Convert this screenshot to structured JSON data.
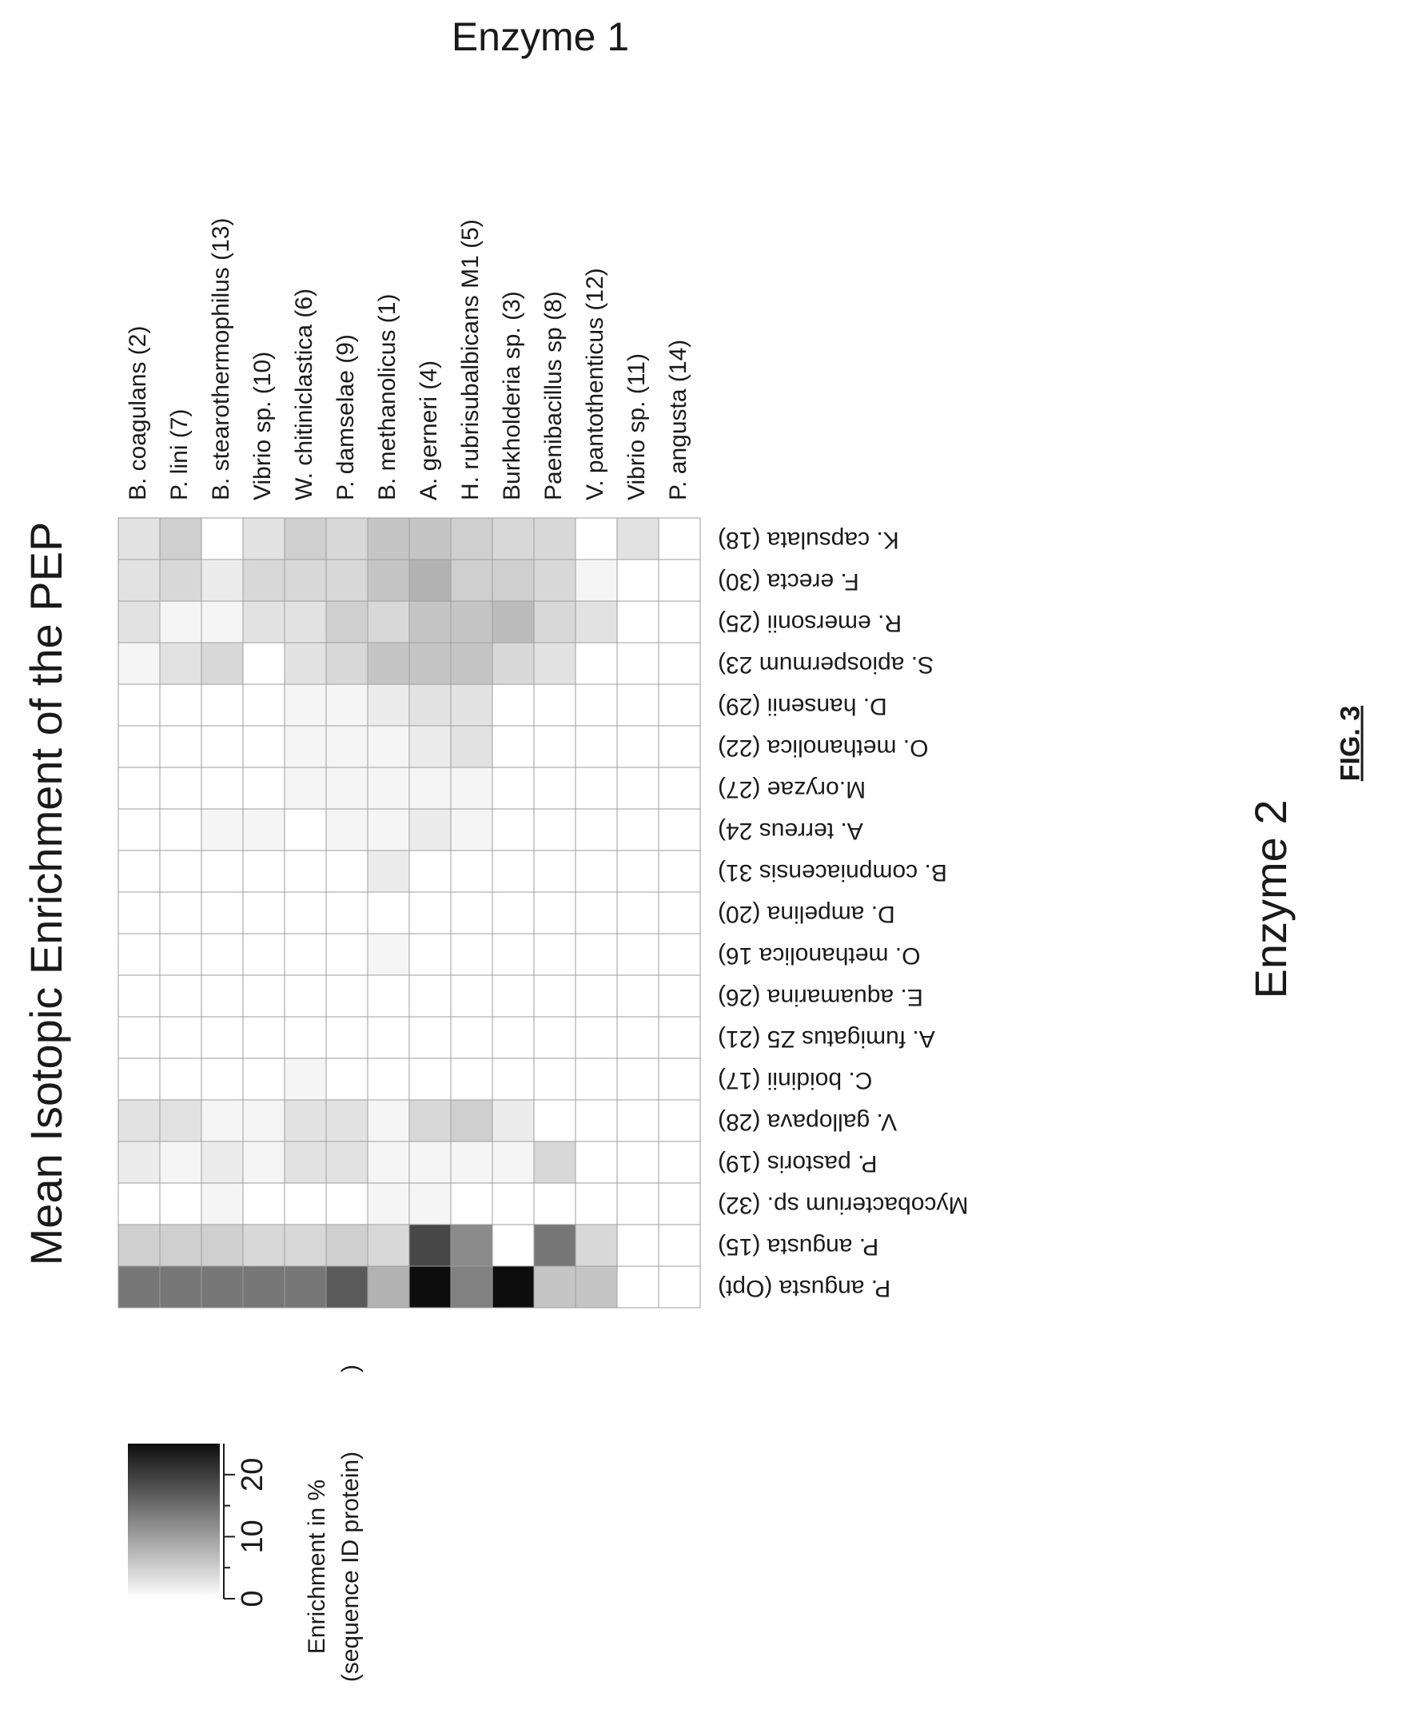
{
  "figure_label": "FIG. 3",
  "chart_data": {
    "type": "heatmap",
    "title": "Mean Isotopic Enrichment of the PEP",
    "enzyme1_label": "Enzyme 1",
    "enzyme2_label": "Enzyme 2",
    "enzyme1": [
      "B. coagulans (2)",
      "P. lini (7)",
      "B. stearothermophilus (13)",
      "Vibrio sp. (10)",
      "W. chitiniclastica (6)",
      "P. damselae (9)",
      "B. methanolicus (1)",
      "A. gerneri (4)",
      "H. rubrisubalbicans M1 (5)",
      "Burkholderia sp. (3)",
      "Paenibacillus sp (8)",
      "V. pantothenticus (12)",
      "Vibrio sp. (11)",
      "P. angusta (14)"
    ],
    "enzyme2": [
      "K. capsulata (18)",
      "F. erecta (30)",
      "R. emersonii (25)",
      "S. apiospermum 23)",
      "D. hansenii (29)",
      "O. methanolica (22)",
      "M.oryzae (27)",
      "A. terreus 24)",
      "B. compniacensis 31)",
      "D. ampelina (20)",
      "O. methanolica 16)",
      "E. aquamarina (26)",
      "A. fumigatus Z5 (21)",
      "C. boidinii (17)",
      "V. gallopava  (28)",
      "P. pastoris (19)",
      "Mycobacterium sp. (32)",
      "P. angusta (15)",
      "P. angusta (Opt)"
    ],
    "values": [
      [
        3,
        3,
        3,
        1,
        0,
        0,
        0,
        0,
        0,
        0,
        0,
        0,
        0,
        0,
        3,
        2,
        0,
        5,
        14
      ],
      [
        5,
        4,
        1,
        3,
        0,
        0,
        0,
        0,
        0,
        0,
        0,
        0,
        0,
        0,
        3,
        1,
        0,
        5,
        14
      ],
      [
        0,
        2,
        1,
        4,
        0,
        0,
        0,
        1,
        0,
        0,
        0,
        0,
        0,
        0,
        1,
        2,
        1,
        5,
        14
      ],
      [
        3,
        4,
        3,
        0,
        0,
        0,
        0,
        1,
        0,
        0,
        0,
        0,
        0,
        0,
        1,
        1,
        0,
        4,
        14
      ],
      [
        5,
        4,
        3,
        3,
        1,
        1,
        1,
        0,
        0,
        0,
        0,
        0,
        0,
        1,
        3,
        3,
        0,
        4,
        14
      ],
      [
        4,
        4,
        5,
        4,
        1,
        1,
        1,
        1,
        0,
        0,
        0,
        0,
        0,
        0,
        3,
        3,
        0,
        5,
        17
      ],
      [
        6,
        6,
        4,
        6,
        2,
        1,
        1,
        1,
        2,
        0,
        1,
        0,
        0,
        0,
        1,
        1,
        1,
        4,
        8
      ],
      [
        6,
        8,
        6,
        6,
        3,
        2,
        1,
        2,
        0,
        0,
        0,
        0,
        0,
        0,
        4,
        1,
        1,
        19,
        26
      ],
      [
        5,
        5,
        6,
        6,
        3,
        3,
        1,
        1,
        0,
        0,
        0,
        0,
        0,
        0,
        5,
        1,
        0,
        12,
        13
      ],
      [
        4,
        5,
        7,
        4,
        0,
        0,
        0,
        0,
        0,
        0,
        0,
        0,
        0,
        0,
        2,
        1,
        0,
        0,
        26
      ],
      [
        4,
        4,
        4,
        3,
        0,
        0,
        0,
        0,
        0,
        0,
        0,
        0,
        0,
        0,
        0,
        4,
        0,
        14,
        6
      ],
      [
        0,
        1,
        3,
        0,
        0,
        0,
        0,
        0,
        0,
        0,
        0,
        0,
        0,
        0,
        0,
        0,
        0,
        4,
        6
      ],
      [
        3,
        0,
        0,
        0,
        0,
        0,
        0,
        0,
        0,
        0,
        0,
        0,
        0,
        0,
        0,
        0,
        0,
        0,
        0
      ],
      [
        0,
        0,
        0,
        0,
        0,
        0,
        0,
        0,
        0,
        0,
        0,
        0,
        0,
        0,
        0,
        0,
        0,
        0,
        0
      ]
    ],
    "colorbar": {
      "label_line1": "Enrichment in %",
      "label_line2": "(sequence ID protein)",
      "min": 0,
      "max": 25,
      "ticks": [
        "0",
        "10",
        "20"
      ],
      "tick_values": [
        0,
        10,
        20
      ],
      "minor_ticks": [
        5,
        15
      ],
      "stray_mark": ")"
    },
    "colors": {
      "low": "#ffffff",
      "high": "#0d0d0d",
      "grid": "#9e9e9e"
    }
  }
}
